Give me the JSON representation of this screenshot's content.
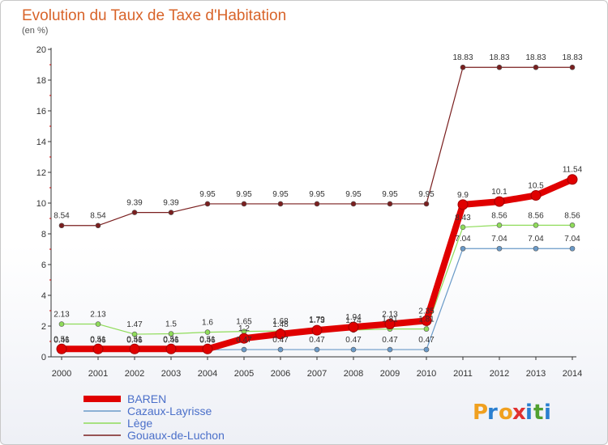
{
  "chart_data": {
    "type": "line",
    "title": "Evolution du Taux de Taxe d'Habitation",
    "subtitle": "(en %)",
    "x": [
      "2000",
      "2001",
      "2002",
      "2003",
      "2004",
      "2005",
      "2006",
      "2007",
      "2008",
      "2009",
      "2010",
      "2011",
      "2012",
      "2013",
      "2014"
    ],
    "ylim": [
      0,
      20
    ],
    "yticks": [
      "0",
      "2",
      "4",
      "6",
      "8",
      "10",
      "12",
      "14",
      "16",
      "18",
      "20"
    ],
    "grid": false,
    "legend_position": "bottom-left",
    "series": [
      {
        "name": "BAREN",
        "color": "#e00000",
        "values": [
          0.51,
          0.51,
          0.51,
          0.51,
          0.51,
          1.2,
          1.48,
          1.73,
          1.94,
          2.13,
          2.35,
          9.9,
          10.1,
          10.5,
          11.54
        ],
        "labels": [
          "0.51",
          "0.51",
          "0.51",
          "0.51",
          "0.51",
          "1.2",
          "1.48",
          "1.73",
          "1.94",
          "2.13",
          "2.35",
          "9.9",
          "10.1",
          "10.5",
          "11.54"
        ]
      },
      {
        "name": "Cazaux-Layrisse",
        "color": "#6a9ac8",
        "values": [
          0.46,
          0.46,
          0.46,
          0.46,
          0.46,
          0.47,
          0.47,
          0.47,
          0.47,
          0.47,
          0.47,
          7.04,
          7.04,
          7.04,
          7.04
        ],
        "labels": [
          "0.46",
          "0.46",
          "0.46",
          "0.46",
          "0.46",
          "0.47",
          "0.47",
          "0.47",
          "0.47",
          "0.47",
          "0.47",
          "7.04",
          "7.04",
          "7.04",
          "7.04"
        ]
      },
      {
        "name": "Lège",
        "color": "#8fdc5a",
        "values": [
          2.13,
          2.13,
          1.47,
          1.5,
          1.6,
          1.65,
          1.68,
          1.79,
          1.74,
          1.81,
          1.81,
          8.43,
          8.56,
          8.56,
          8.56
        ],
        "labels": [
          "2.13",
          "2.13",
          "1.47",
          "1.5",
          "1.6",
          "1.65",
          "1.68",
          "1.79",
          "1.74",
          "1.81",
          "1.81",
          "8.43",
          "8.56",
          "8.56",
          "8.56"
        ]
      },
      {
        "name": "Gouaux-de-Luchon",
        "color": "#7a1f1f",
        "values": [
          8.54,
          8.54,
          9.39,
          9.39,
          9.95,
          9.95,
          9.95,
          9.95,
          9.95,
          9.95,
          9.95,
          18.83,
          18.83,
          18.83,
          18.83
        ],
        "labels": [
          "8.54",
          "8.54",
          "9.39",
          "9.39",
          "9.95",
          "9.95",
          "9.95",
          "9.95",
          "9.95",
          "9.95",
          "9.95",
          "18.83",
          "18.83",
          "18.83",
          "18.83"
        ]
      }
    ]
  },
  "logo": {
    "letters": [
      "P",
      "r",
      "o",
      "x",
      "i",
      "t",
      "i"
    ],
    "colors": [
      "#f0a020",
      "#2a7fd0",
      "#f0a020",
      "#e03030",
      "#2a7fd0",
      "#50a030",
      "#2a7fd0"
    ]
  }
}
